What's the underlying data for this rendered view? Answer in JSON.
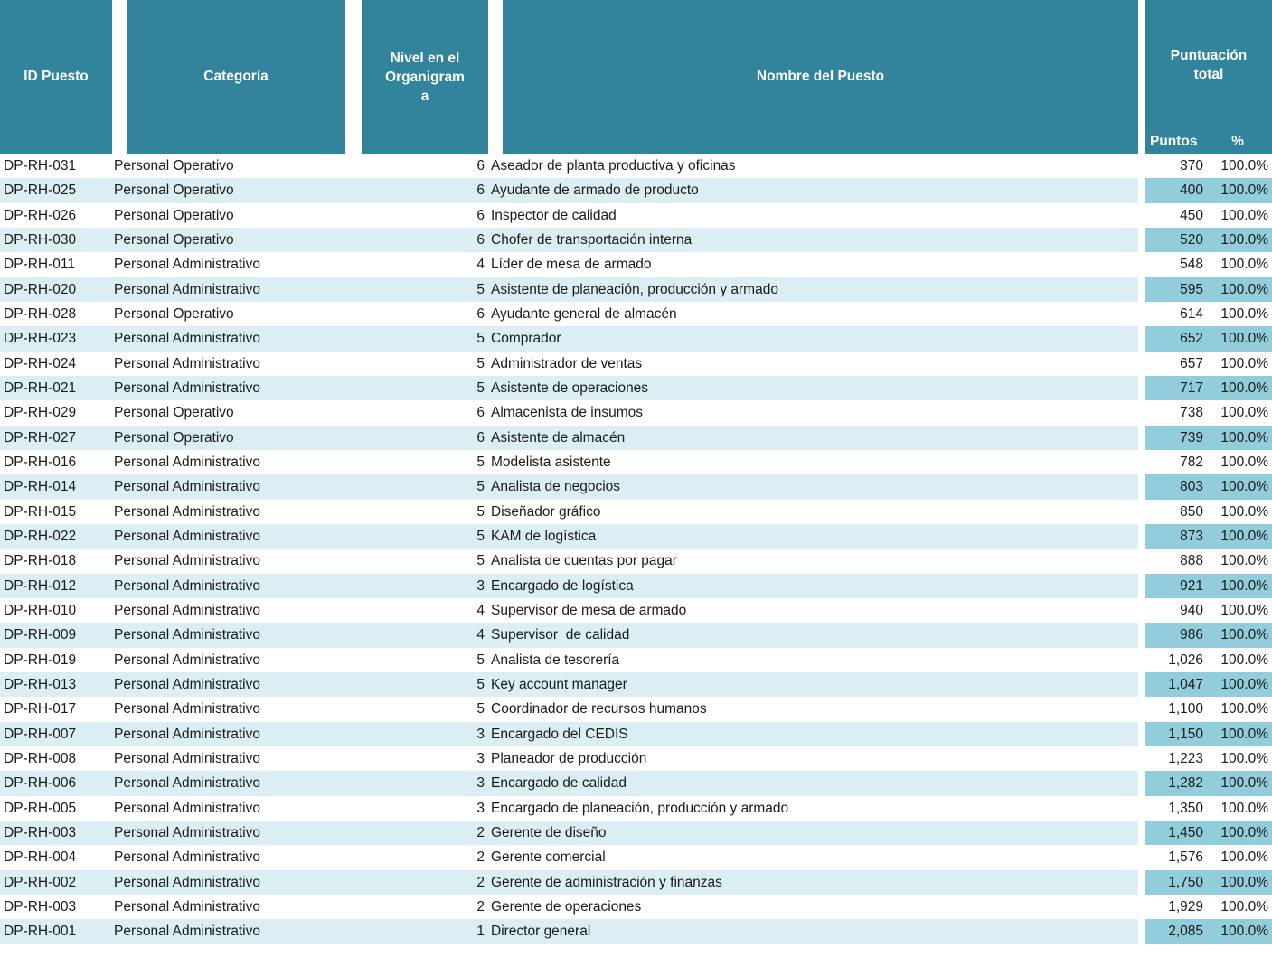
{
  "colors": {
    "header_teal": "#31849B",
    "band_light_blue": "#DAEEF3",
    "band_medium_blue": "#92CDDC",
    "header_text": "#FFFFFF",
    "body_text": "#1A1A1A"
  },
  "table": {
    "columns": {
      "id": "ID Puesto",
      "categoria": "Categoría",
      "nivel_lines": [
        "Nivel en el",
        "Organigram",
        "a"
      ],
      "nombre": "Nombre del Puesto",
      "puntuacion_total": "Puntuación total",
      "puntos": "Puntos",
      "pct": "%"
    },
    "rows": [
      {
        "id": "DP-RH-031",
        "categoria": "Personal Operativo",
        "nivel": "6",
        "nombre": "Aseador de planta productiva y oficinas",
        "puntos": "370",
        "pct": "100.0%"
      },
      {
        "id": "DP-RH-025",
        "categoria": "Personal Operativo",
        "nivel": "6",
        "nombre": "Ayudante de armado de producto",
        "puntos": "400",
        "pct": "100.0%"
      },
      {
        "id": "DP-RH-026",
        "categoria": "Personal Operativo",
        "nivel": "6",
        "nombre": "Inspector de calidad",
        "puntos": "450",
        "pct": "100.0%"
      },
      {
        "id": "DP-RH-030",
        "categoria": "Personal Operativo",
        "nivel": "6",
        "nombre": "Chofer de transportación interna",
        "puntos": "520",
        "pct": "100.0%"
      },
      {
        "id": "DP-RH-011",
        "categoria": "Personal Administrativo",
        "nivel": "4",
        "nombre": "Líder de mesa de armado",
        "puntos": "548",
        "pct": "100.0%"
      },
      {
        "id": "DP-RH-020",
        "categoria": "Personal Administrativo",
        "nivel": "5",
        "nombre": "Asistente de planeación, producción y armado",
        "puntos": "595",
        "pct": "100.0%"
      },
      {
        "id": "DP-RH-028",
        "categoria": "Personal Operativo",
        "nivel": "6",
        "nombre": "Ayudante general de almacén",
        "puntos": "614",
        "pct": "100.0%"
      },
      {
        "id": "DP-RH-023",
        "categoria": "Personal Administrativo",
        "nivel": "5",
        "nombre": "Comprador",
        "puntos": "652",
        "pct": "100.0%"
      },
      {
        "id": "DP-RH-024",
        "categoria": "Personal Administrativo",
        "nivel": "5",
        "nombre": "Administrador de ventas",
        "puntos": "657",
        "pct": "100.0%"
      },
      {
        "id": "DP-RH-021",
        "categoria": "Personal Administrativo",
        "nivel": "5",
        "nombre": "Asistente de operaciones",
        "puntos": "717",
        "pct": "100.0%"
      },
      {
        "id": "DP-RH-029",
        "categoria": "Personal Operativo",
        "nivel": "6",
        "nombre": "Almacenista de insumos",
        "puntos": "738",
        "pct": "100.0%"
      },
      {
        "id": "DP-RH-027",
        "categoria": "Personal Operativo",
        "nivel": "6",
        "nombre": "Asistente de almacén",
        "puntos": "739",
        "pct": "100.0%"
      },
      {
        "id": "DP-RH-016",
        "categoria": "Personal Administrativo",
        "nivel": "5",
        "nombre": "Modelista asistente",
        "puntos": "782",
        "pct": "100.0%"
      },
      {
        "id": "DP-RH-014",
        "categoria": "Personal Administrativo",
        "nivel": "5",
        "nombre": "Analista de negocios",
        "puntos": "803",
        "pct": "100.0%"
      },
      {
        "id": "DP-RH-015",
        "categoria": "Personal Administrativo",
        "nivel": "5",
        "nombre": "Diseñador gráfico",
        "puntos": "850",
        "pct": "100.0%"
      },
      {
        "id": "DP-RH-022",
        "categoria": "Personal Administrativo",
        "nivel": "5",
        "nombre": "KAM de logística",
        "puntos": "873",
        "pct": "100.0%"
      },
      {
        "id": "DP-RH-018",
        "categoria": "Personal Administrativo",
        "nivel": "5",
        "nombre": "Analista de cuentas por pagar",
        "puntos": "888",
        "pct": "100.0%"
      },
      {
        "id": "DP-RH-012",
        "categoria": "Personal Administrativo",
        "nivel": "3",
        "nombre": "Encargado de logística",
        "puntos": "921",
        "pct": "100.0%"
      },
      {
        "id": "DP-RH-010",
        "categoria": "Personal Administrativo",
        "nivel": "4",
        "nombre": "Supervisor de mesa de armado",
        "puntos": "940",
        "pct": "100.0%"
      },
      {
        "id": "DP-RH-009",
        "categoria": "Personal Administrativo",
        "nivel": "4",
        "nombre": "Supervisor  de calidad",
        "puntos": "986",
        "pct": "100.0%"
      },
      {
        "id": "DP-RH-019",
        "categoria": "Personal Administrativo",
        "nivel": "5",
        "nombre": "Analista de tesorería",
        "puntos": "1,026",
        "pct": "100.0%"
      },
      {
        "id": "DP-RH-013",
        "categoria": "Personal Administrativo",
        "nivel": "5",
        "nombre": "Key account manager",
        "puntos": "1,047",
        "pct": "100.0%"
      },
      {
        "id": "DP-RH-017",
        "categoria": "Personal Administrativo",
        "nivel": "5",
        "nombre": "Coordinador de recursos humanos",
        "puntos": "1,100",
        "pct": "100.0%"
      },
      {
        "id": "DP-RH-007",
        "categoria": "Personal Administrativo",
        "nivel": "3",
        "nombre": "Encargado del CEDIS",
        "puntos": "1,150",
        "pct": "100.0%"
      },
      {
        "id": "DP-RH-008",
        "categoria": "Personal Administrativo",
        "nivel": "3",
        "nombre": "Planeador de producción",
        "puntos": "1,223",
        "pct": "100.0%"
      },
      {
        "id": "DP-RH-006",
        "categoria": "Personal Administrativo",
        "nivel": "3",
        "nombre": "Encargado de calidad",
        "puntos": "1,282",
        "pct": "100.0%"
      },
      {
        "id": "DP-RH-005",
        "categoria": "Personal Administrativo",
        "nivel": "3",
        "nombre": "Encargado de planeación, producción y armado",
        "puntos": "1,350",
        "pct": "100.0%"
      },
      {
        "id": "DP-RH-003",
        "categoria": "Personal Administrativo",
        "nivel": "2",
        "nombre": "Gerente de diseño",
        "puntos": "1,450",
        "pct": "100.0%"
      },
      {
        "id": "DP-RH-004",
        "categoria": "Personal Administrativo",
        "nivel": "2",
        "nombre": "Gerente comercial",
        "puntos": "1,576",
        "pct": "100.0%"
      },
      {
        "id": "DP-RH-002",
        "categoria": "Personal Administrativo",
        "nivel": "2",
        "nombre": "Gerente de administración y finanzas",
        "puntos": "1,750",
        "pct": "100.0%"
      },
      {
        "id": "DP-RH-003",
        "categoria": "Personal Administrativo",
        "nivel": "2",
        "nombre": "Gerente de operaciones",
        "puntos": "1,929",
        "pct": "100.0%"
      },
      {
        "id": "DP-RH-001",
        "categoria": "Personal Administrativo",
        "nivel": "1",
        "nombre": "Director general",
        "puntos": "2,085",
        "pct": "100.0%"
      }
    ]
  }
}
